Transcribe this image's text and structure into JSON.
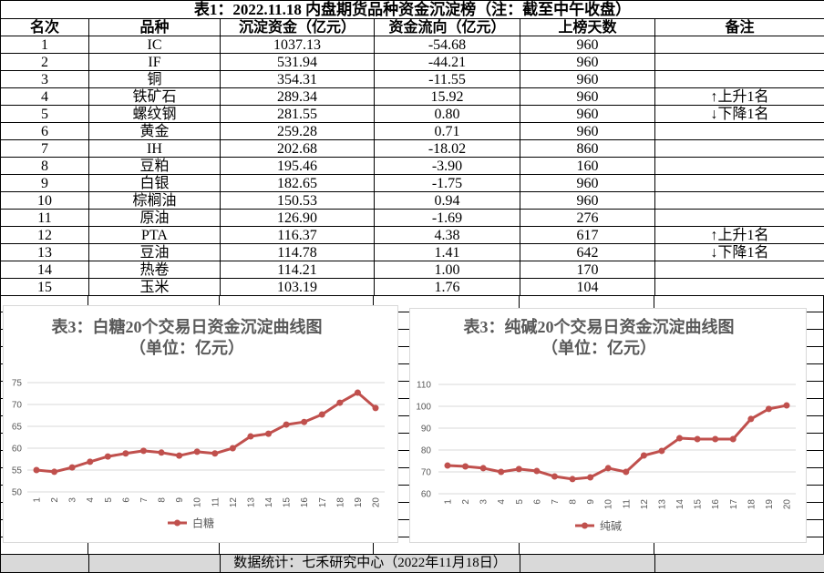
{
  "table": {
    "title": "表1：2022.11.18 内盘期货品种资金沉淀榜（注：截至中午收盘）",
    "headers": {
      "rank": "名次",
      "variety": "品种",
      "capital": "沉淀资金（亿元）",
      "flow": "资金流向（亿元）",
      "days": "上榜天数",
      "note": "备注"
    },
    "rows": [
      {
        "rank": "1",
        "variety": "IC",
        "capital": "1037.13",
        "flow": "-54.68",
        "days": "960"
      },
      {
        "rank": "2",
        "variety": "IF",
        "capital": "531.94",
        "flow": "-44.21",
        "days": "960"
      },
      {
        "rank": "3",
        "variety": "铜",
        "capital": "354.31",
        "flow": "-11.55",
        "days": "960"
      },
      {
        "rank": "4",
        "variety": "铁矿石",
        "capital": "289.34",
        "flow": "15.92",
        "days": "960",
        "note": "↑上升1名"
      },
      {
        "rank": "5",
        "variety": "螺纹钢",
        "capital": "281.55",
        "flow": "0.80",
        "days": "960",
        "note": "↓下降1名"
      },
      {
        "rank": "6",
        "variety": "黄金",
        "capital": "259.28",
        "flow": "0.71",
        "days": "960"
      },
      {
        "rank": "7",
        "variety": "IH",
        "capital": "202.68",
        "flow": "-18.02",
        "days": "860"
      },
      {
        "rank": "8",
        "variety": "豆粕",
        "capital": "195.46",
        "flow": "-3.90",
        "days": "160"
      },
      {
        "rank": "9",
        "variety": "白银",
        "capital": "182.65",
        "flow": "-1.75",
        "days": "960"
      },
      {
        "rank": "10",
        "variety": "棕榈油",
        "capital": "150.53",
        "flow": "0.94",
        "days": "960"
      },
      {
        "rank": "11",
        "variety": "原油",
        "capital": "126.90",
        "flow": "-1.69",
        "days": "276"
      },
      {
        "rank": "12",
        "variety": "PTA",
        "capital": "116.37",
        "flow": "4.38",
        "days": "617",
        "note": "↑上升1名"
      },
      {
        "rank": "13",
        "variety": "豆油",
        "capital": "114.78",
        "flow": "1.41",
        "days": "642",
        "note": "↓下降1名"
      },
      {
        "rank": "14",
        "variety": "热卷",
        "capital": "114.21",
        "flow": "1.00",
        "days": "170"
      },
      {
        "rank": "15",
        "variety": "玉米",
        "capital": "103.19",
        "flow": "1.76",
        "days": "104"
      }
    ]
  },
  "footer": "数据统计：七禾研究中心（2022年11月18日）",
  "chart_data": [
    {
      "type": "line",
      "title": "表3：白糖20个交易日资金沉淀曲线图",
      "subtitle": "（单位：亿元）",
      "x": [
        1,
        2,
        3,
        4,
        5,
        6,
        7,
        8,
        9,
        10,
        11,
        12,
        13,
        14,
        15,
        16,
        17,
        18,
        19,
        20
      ],
      "ylim": [
        50,
        75
      ],
      "yticks": [
        50,
        55,
        60,
        65,
        70,
        75
      ],
      "grid": true,
      "legend": "bottom",
      "series": [
        {
          "name": "白糖",
          "color": "#c0504d",
          "values": [
            55.0,
            54.6,
            55.6,
            56.9,
            58.1,
            58.8,
            59.4,
            59.0,
            58.3,
            59.2,
            58.8,
            60.0,
            62.7,
            63.3,
            65.4,
            66.0,
            67.7,
            70.4,
            72.7,
            69.2
          ]
        }
      ]
    },
    {
      "type": "line",
      "title": "表3：纯碱20个交易日资金沉淀曲线图",
      "subtitle": "（单位：亿元）",
      "x": [
        1,
        2,
        3,
        4,
        5,
        6,
        7,
        8,
        9,
        10,
        11,
        12,
        13,
        14,
        15,
        16,
        17,
        18,
        19,
        20
      ],
      "ylim": [
        60,
        110
      ],
      "yticks": [
        60,
        70,
        80,
        90,
        100,
        110
      ],
      "grid": true,
      "legend": "bottom",
      "series": [
        {
          "name": "纯碱",
          "color": "#c0504d",
          "values": [
            72.9,
            72.5,
            71.7,
            70.0,
            71.3,
            70.4,
            67.9,
            66.7,
            67.5,
            71.7,
            70.0,
            77.5,
            79.6,
            85.4,
            85.0,
            85.0,
            85.0,
            94.2,
            98.8,
            100.4
          ]
        }
      ]
    }
  ]
}
